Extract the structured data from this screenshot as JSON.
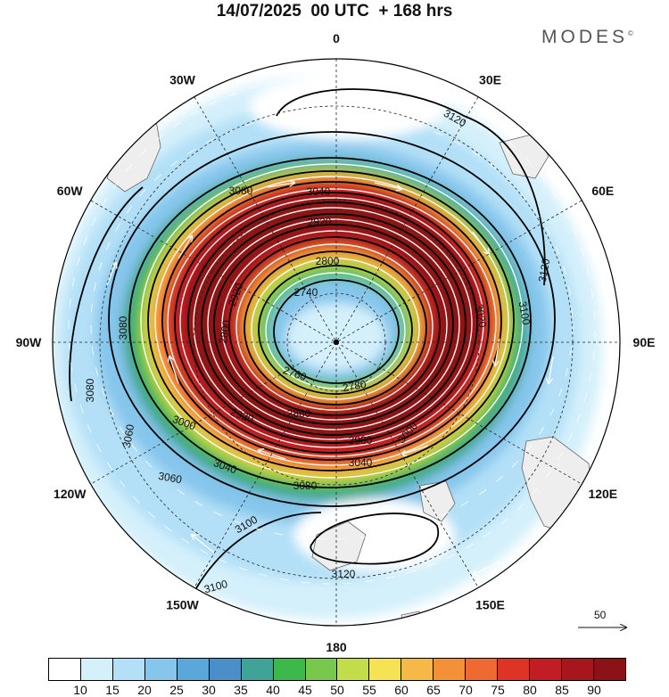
{
  "title": "14/07/2025  00 UTC  + 168 hrs",
  "brand": "MODES",
  "brand_mark": "©",
  "longitude_labels": [
    {
      "label": "0",
      "angle": 0
    },
    {
      "label": "30E",
      "angle": 30
    },
    {
      "label": "60E",
      "angle": 60
    },
    {
      "label": "90E",
      "angle": 90
    },
    {
      "label": "120E",
      "angle": 120
    },
    {
      "label": "150E",
      "angle": 150
    },
    {
      "label": "180",
      "angle": 180
    },
    {
      "label": "150W",
      "angle": 210
    },
    {
      "label": "120W",
      "angle": 240
    },
    {
      "label": "90W",
      "angle": 270
    },
    {
      "label": "60W",
      "angle": 300
    },
    {
      "label": "30W",
      "angle": 330
    }
  ],
  "contour_labels": [
    "3120",
    "3120",
    "3080",
    "3040",
    "2920",
    "2800",
    "2740",
    "2920",
    "2800",
    "2760",
    "2780",
    "2860",
    "2920",
    "3020",
    "3100",
    "3080",
    "3080",
    "3060",
    "3000",
    "3040",
    "3060",
    "3080",
    "3100",
    "3100",
    "3120",
    "3040",
    "3000",
    "2980"
  ],
  "colorbar": {
    "colors": [
      "#ffffff",
      "#d4f0fb",
      "#b3e0f7",
      "#86c6ec",
      "#5aa7dc",
      "#4a8fc9",
      "#3fa397",
      "#3db84a",
      "#78c84d",
      "#c2dc4a",
      "#f5e354",
      "#f6b846",
      "#f39038",
      "#ee6a30",
      "#de3426",
      "#c21d24",
      "#a7161c",
      "#8c1218"
    ],
    "ticks": [
      "10",
      "15",
      "20",
      "25",
      "30",
      "35",
      "40",
      "45",
      "50",
      "55",
      "60",
      "65",
      "70",
      "75",
      "80",
      "85",
      "90"
    ]
  },
  "reference_vector": "50"
}
